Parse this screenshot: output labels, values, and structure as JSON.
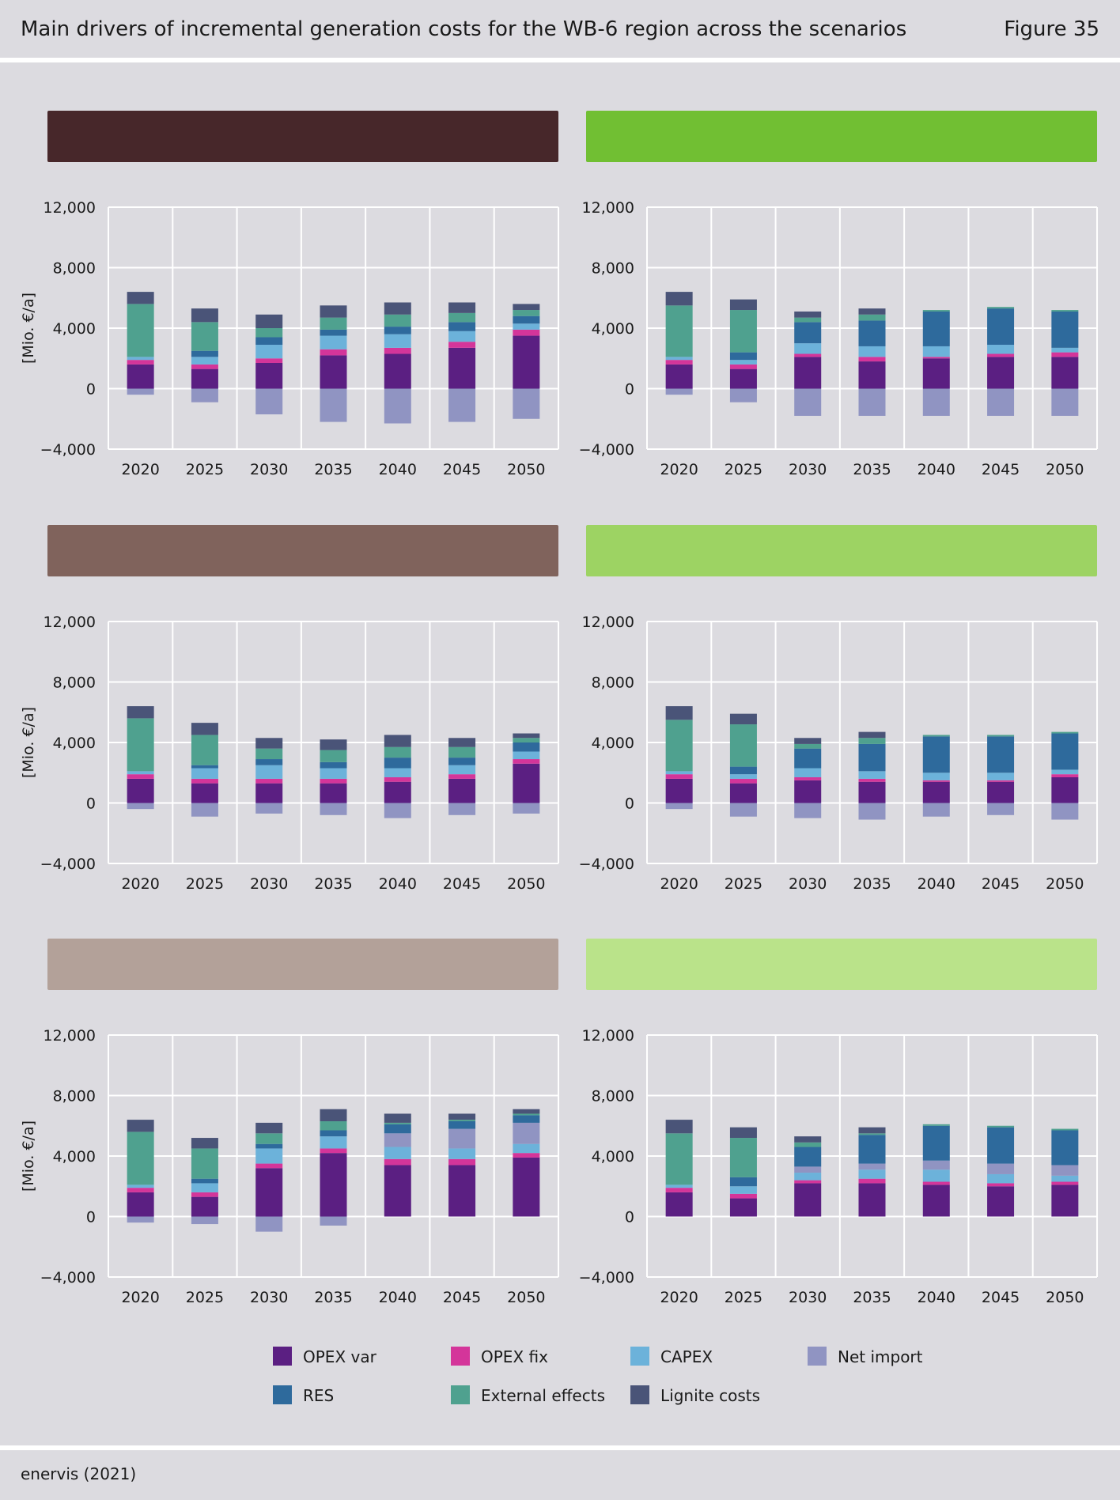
{
  "header": {
    "title": "Main drivers of incremental generation costs for the WB-6 region across the scenarios",
    "figure": "Figure 35"
  },
  "footer": {
    "source": "enervis (2021)"
  },
  "legend": [
    {
      "key": "opex_var",
      "label": "OPEX var",
      "color": "#5b1f82"
    },
    {
      "key": "opex_fix",
      "label": "OPEX fix",
      "color": "#d4359a"
    },
    {
      "key": "capex",
      "label": "CAPEX",
      "color": "#6cb2da"
    },
    {
      "key": "net_import",
      "label": "Net import",
      "color": "#9094c2"
    },
    {
      "key": "res",
      "label": "RES",
      "color": "#2e6a9c"
    },
    {
      "key": "external",
      "label": "External effects",
      "color": "#4fa18f"
    },
    {
      "key": "lignite",
      "label": "Lignite costs",
      "color": "#4a5478"
    }
  ],
  "chart_data": [
    {
      "type": "bar",
      "stacked": true,
      "banner_color": "#47272a",
      "ylabel": "[Mio. €/a]",
      "ylim": [
        -4000,
        12000
      ],
      "yticks": [
        "12,000",
        "8,000",
        "4,000",
        "0",
        "−4,000"
      ],
      "categories": [
        "2020",
        "2025",
        "2030",
        "2035",
        "2040",
        "2045",
        "2050"
      ],
      "series": [
        {
          "key": "opex_var",
          "values": [
            1600,
            1300,
            1700,
            2200,
            2300,
            2700,
            3500
          ]
        },
        {
          "key": "opex_fix",
          "values": [
            300,
            300,
            300,
            400,
            400,
            400,
            400
          ]
        },
        {
          "key": "capex",
          "values": [
            200,
            500,
            900,
            900,
            900,
            700,
            400
          ]
        },
        {
          "key": "res",
          "values": [
            0,
            400,
            500,
            400,
            500,
            600,
            500
          ]
        },
        {
          "key": "external",
          "values": [
            3500,
            1900,
            600,
            800,
            800,
            600,
            400
          ]
        },
        {
          "key": "lignite",
          "values": [
            800,
            900,
            900,
            800,
            800,
            700,
            400
          ]
        },
        {
          "key": "net_import",
          "values": [
            -400,
            -900,
            -1700,
            -2200,
            -2300,
            -2200,
            -2000
          ]
        }
      ]
    },
    {
      "type": "bar",
      "stacked": true,
      "banner_color": "#71bf33",
      "ylabel": "",
      "ylim": [
        -4000,
        12000
      ],
      "yticks": [
        "12,000",
        "8,000",
        "4,000",
        "0",
        "−4,000"
      ],
      "categories": [
        "2020",
        "2025",
        "2030",
        "2035",
        "2040",
        "2045",
        "2050"
      ],
      "series": [
        {
          "key": "opex_var",
          "values": [
            1600,
            1300,
            2100,
            1800,
            2000,
            2100,
            2100
          ]
        },
        {
          "key": "opex_fix",
          "values": [
            300,
            300,
            200,
            300,
            100,
            200,
            300
          ]
        },
        {
          "key": "capex",
          "values": [
            200,
            300,
            700,
            700,
            700,
            600,
            300
          ]
        },
        {
          "key": "res",
          "values": [
            0,
            500,
            1400,
            1700,
            2300,
            2400,
            2400
          ]
        },
        {
          "key": "external",
          "values": [
            3400,
            2800,
            300,
            400,
            100,
            100,
            100
          ]
        },
        {
          "key": "lignite",
          "values": [
            900,
            700,
            400,
            400,
            0,
            0,
            0
          ]
        },
        {
          "key": "net_import",
          "values": [
            -400,
            -900,
            -1800,
            -1800,
            -1800,
            -1800,
            -1800
          ]
        }
      ]
    },
    {
      "type": "bar",
      "stacked": true,
      "banner_color": "#80635c",
      "ylabel": "[Mio. €/a]",
      "ylim": [
        -4000,
        12000
      ],
      "yticks": [
        "12,000",
        "8,000",
        "4,000",
        "0",
        "−4,000"
      ],
      "categories": [
        "2020",
        "2025",
        "2030",
        "2035",
        "2040",
        "2045",
        "2050"
      ],
      "series": [
        {
          "key": "opex_var",
          "values": [
            1600,
            1300,
            1300,
            1300,
            1400,
            1600,
            2600
          ]
        },
        {
          "key": "opex_fix",
          "values": [
            300,
            300,
            300,
            300,
            300,
            300,
            300
          ]
        },
        {
          "key": "capex",
          "values": [
            200,
            700,
            900,
            700,
            600,
            600,
            500
          ]
        },
        {
          "key": "res",
          "values": [
            0,
            200,
            400,
            400,
            700,
            500,
            600
          ]
        },
        {
          "key": "external",
          "values": [
            3500,
            2000,
            700,
            800,
            700,
            700,
            300
          ]
        },
        {
          "key": "lignite",
          "values": [
            800,
            800,
            700,
            700,
            800,
            600,
            300
          ]
        },
        {
          "key": "net_import",
          "values": [
            -400,
            -900,
            -700,
            -800,
            -1000,
            -800,
            -700
          ]
        }
      ]
    },
    {
      "type": "bar",
      "stacked": true,
      "banner_color": "#9dd363",
      "ylabel": "",
      "ylim": [
        -4000,
        12000
      ],
      "yticks": [
        "12,000",
        "8,000",
        "4,000",
        "0",
        "−4,000"
      ],
      "categories": [
        "2020",
        "2025",
        "2030",
        "2035",
        "2040",
        "2045",
        "2050"
      ],
      "series": [
        {
          "key": "opex_var",
          "values": [
            1600,
            1300,
            1500,
            1400,
            1400,
            1400,
            1700
          ]
        },
        {
          "key": "opex_fix",
          "values": [
            300,
            300,
            200,
            200,
            100,
            100,
            200
          ]
        },
        {
          "key": "capex",
          "values": [
            200,
            300,
            600,
            500,
            500,
            500,
            300
          ]
        },
        {
          "key": "res",
          "values": [
            0,
            500,
            1300,
            1800,
            2400,
            2400,
            2400
          ]
        },
        {
          "key": "external",
          "values": [
            3400,
            2800,
            300,
            400,
            100,
            100,
            100
          ]
        },
        {
          "key": "lignite",
          "values": [
            900,
            700,
            400,
            400,
            0,
            0,
            0
          ]
        },
        {
          "key": "net_import",
          "values": [
            -400,
            -900,
            -1000,
            -1100,
            -900,
            -800,
            -1100
          ]
        }
      ]
    },
    {
      "type": "bar",
      "stacked": true,
      "banner_color": "#b3a199",
      "ylabel": "[Mio. €/a]",
      "ylim": [
        -4000,
        12000
      ],
      "yticks": [
        "12,000",
        "8,000",
        "4,000",
        "0",
        "−4,000"
      ],
      "categories": [
        "2020",
        "2025",
        "2030",
        "2035",
        "2040",
        "2045",
        "2050"
      ],
      "series": [
        {
          "key": "opex_var",
          "values": [
            1600,
            1300,
            3200,
            4200,
            3400,
            3400,
            3900
          ]
        },
        {
          "key": "opex_fix",
          "values": [
            300,
            300,
            300,
            300,
            400,
            400,
            300
          ]
        },
        {
          "key": "capex",
          "values": [
            200,
            600,
            1000,
            800,
            800,
            700,
            600
          ]
        },
        {
          "key": "net_import",
          "values": [
            -400,
            -500,
            -1000,
            -600,
            900,
            1300,
            1400
          ]
        },
        {
          "key": "res",
          "values": [
            0,
            300,
            300,
            400,
            600,
            500,
            500
          ]
        },
        {
          "key": "external",
          "values": [
            3500,
            2000,
            700,
            600,
            100,
            100,
            100
          ]
        },
        {
          "key": "lignite",
          "values": [
            800,
            700,
            700,
            800,
            600,
            400,
            300
          ]
        }
      ]
    },
    {
      "type": "bar",
      "stacked": true,
      "banner_color": "#bae38a",
      "ylabel": "",
      "ylim": [
        -4000,
        12000
      ],
      "yticks": [
        "12,000",
        "8,000",
        "4,000",
        "0",
        "−4,000"
      ],
      "categories": [
        "2020",
        "2025",
        "2030",
        "2035",
        "2040",
        "2045",
        "2050"
      ],
      "series": [
        {
          "key": "opex_var",
          "values": [
            1600,
            1200,
            2200,
            2200,
            2100,
            2000,
            2100
          ]
        },
        {
          "key": "opex_fix",
          "values": [
            300,
            300,
            200,
            300,
            200,
            200,
            200
          ]
        },
        {
          "key": "capex",
          "values": [
            200,
            500,
            500,
            600,
            800,
            600,
            400
          ]
        },
        {
          "key": "net_import",
          "values": [
            0,
            0,
            400,
            400,
            600,
            700,
            700
          ]
        },
        {
          "key": "res",
          "values": [
            0,
            600,
            1300,
            1900,
            2300,
            2400,
            2300
          ]
        },
        {
          "key": "external",
          "values": [
            3400,
            2600,
            300,
            100,
            100,
            100,
            100
          ]
        },
        {
          "key": "lignite",
          "values": [
            900,
            700,
            400,
            400,
            0,
            0,
            0
          ]
        }
      ]
    }
  ]
}
